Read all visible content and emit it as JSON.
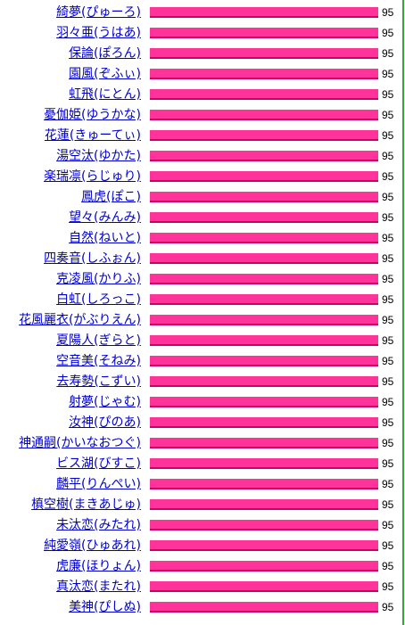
{
  "colors": {
    "link": "#0000cc",
    "bar_fill": "#ff3399",
    "bar_border": "#cc0066",
    "score_text": "#000000",
    "right_line": "#33aa33"
  },
  "max_score": 95,
  "ranking": [
    {
      "name": "綺夢(ぴゅーろ)",
      "score": "95",
      "value": 95
    },
    {
      "name": "羽々亜(うはあ)",
      "score": "95",
      "value": 95
    },
    {
      "name": "保論(ぽろん)",
      "score": "95",
      "value": 95
    },
    {
      "name": "園風(ぞふぃ)",
      "score": "95",
      "value": 95
    },
    {
      "name": "虹飛(にとん)",
      "score": "95",
      "value": 95
    },
    {
      "name": "憂伽姫(ゆうかな)",
      "score": "95",
      "value": 95
    },
    {
      "name": "花蓮(きゅーてぃ)",
      "score": "95",
      "value": 95
    },
    {
      "name": "湯空汰(ゆかた)",
      "score": "95",
      "value": 95
    },
    {
      "name": "楽瑞凛(らじゅり)",
      "score": "95",
      "value": 95
    },
    {
      "name": "鳳虎(ぽこ)",
      "score": "95",
      "value": 95
    },
    {
      "name": "望々(みんみ)",
      "score": "95",
      "value": 95
    },
    {
      "name": "自然(ねいと)",
      "score": "95",
      "value": 95
    },
    {
      "name": "四奏音(しふぉん)",
      "score": "95",
      "value": 95
    },
    {
      "name": "克凌風(かりふ)",
      "score": "95",
      "value": 95
    },
    {
      "name": "白虹(しろっこ)",
      "score": "95",
      "value": 95
    },
    {
      "name": "花風麗衣(がぶりえん)",
      "score": "95",
      "value": 95
    },
    {
      "name": "夏陽人(ぎらと)",
      "score": "95",
      "value": 95
    },
    {
      "name": "空音美(そねみ)",
      "score": "95",
      "value": 95
    },
    {
      "name": "去寿勢(こずい)",
      "score": "95",
      "value": 95
    },
    {
      "name": "射夢(じゃむ)",
      "score": "95",
      "value": 95
    },
    {
      "name": "汝神(ぴのあ)",
      "score": "95",
      "value": 95
    },
    {
      "name": "神通嗣(かいなおつぐ)",
      "score": "95",
      "value": 95
    },
    {
      "name": "ビス湖(びすこ)",
      "score": "95",
      "value": 95
    },
    {
      "name": "麟平(りんぺい)",
      "score": "95",
      "value": 95
    },
    {
      "name": "槙空樹(まきあじゅ)",
      "score": "95",
      "value": 95
    },
    {
      "name": "未汰恋(みたれ)",
      "score": "95",
      "value": 95
    },
    {
      "name": "純愛嶺(ひゅあれ)",
      "score": "95",
      "value": 95
    },
    {
      "name": "虎廉(ほりょん)",
      "score": "95",
      "value": 95
    },
    {
      "name": "真汰恋(またれ)",
      "score": "95",
      "value": 95
    },
    {
      "name": "美神(ぴしぬ)",
      "score": "95",
      "value": 95
    }
  ]
}
